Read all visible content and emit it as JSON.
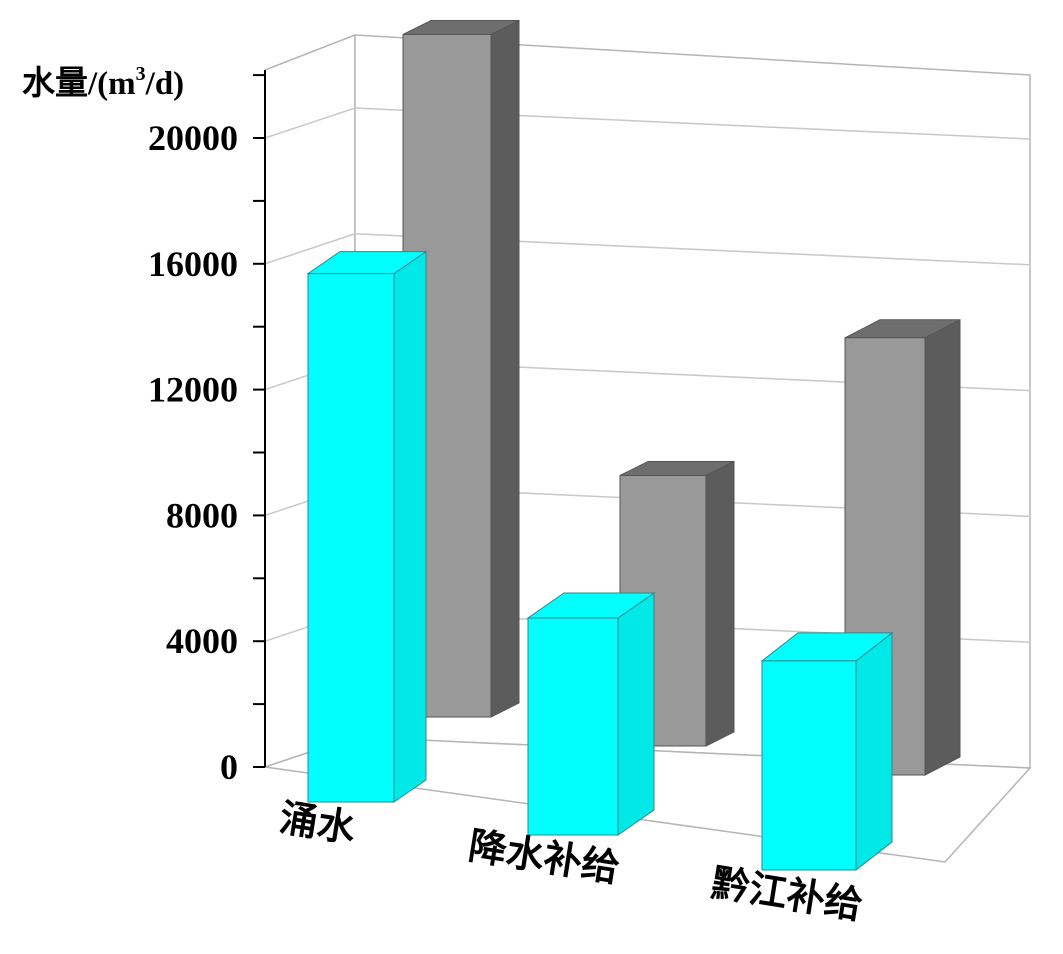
{
  "chart_data": {
    "type": "bar",
    "title": "",
    "xlabel": "",
    "ylabel": {
      "prefix": "水量/(m",
      "sup": "3",
      "suffix": "/d)"
    },
    "categories": [
      "涌水",
      "降水补给",
      "黔江补给"
    ],
    "series": [
      {
        "color": "#00ffff",
        "values": [
          16800,
          6900,
          6650
        ]
      },
      {
        "color": "#999999",
        "values": [
          21700,
          8600,
          13900
        ]
      }
    ],
    "ylim": [
      0,
      22000
    ],
    "yticks": [
      "0",
      "4000",
      "8000",
      "12000",
      "16000",
      "20000"
    ],
    "grid": true,
    "legend": "none"
  }
}
